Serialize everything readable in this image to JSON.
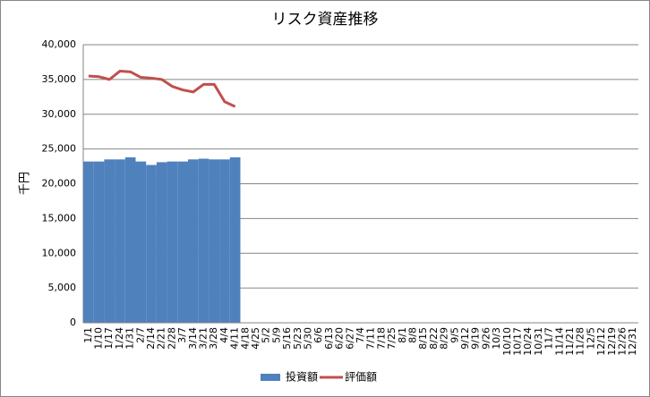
{
  "chart_data": {
    "type": "bar-line",
    "title": "リスク資産推移",
    "y_label": "千円",
    "categories": [
      "1/1",
      "1/10",
      "1/17",
      "1/24",
      "1/31",
      "2/7",
      "2/14",
      "2/21",
      "2/28",
      "3/7",
      "3/14",
      "3/21",
      "3/28",
      "4/4",
      "4/11",
      "4/18",
      "4/25",
      "5/2",
      "5/9",
      "5/16",
      "5/23",
      "5/30",
      "6/6",
      "6/13",
      "6/20",
      "6/27",
      "7/4",
      "7/11",
      "7/18",
      "7/25",
      "8/1",
      "8/8",
      "8/15",
      "8/22",
      "8/29",
      "9/5",
      "9/12",
      "9/19",
      "9/26",
      "10/3",
      "10/10",
      "10/17",
      "10/24",
      "10/31",
      "11/7",
      "11/14",
      "11/21",
      "11/28",
      "12/5",
      "12/12",
      "12/19",
      "12/26",
      "12/31"
    ],
    "series": [
      {
        "name": "投資額",
        "type": "bar",
        "color": "#4f81bd",
        "values": [
          23200,
          23200,
          23500,
          23500,
          23800,
          23200,
          22700,
          23100,
          23200,
          23200,
          23500,
          23600,
          23500,
          23500,
          23800,
          null,
          null,
          null,
          null,
          null,
          null,
          null,
          null,
          null,
          null,
          null,
          null,
          null,
          null,
          null,
          null,
          null,
          null,
          null,
          null,
          null,
          null,
          null,
          null,
          null,
          null,
          null,
          null,
          null,
          null,
          null,
          null,
          null,
          null,
          null,
          null,
          null,
          null
        ]
      },
      {
        "name": "評価額",
        "type": "line",
        "color": "#c0504d",
        "values": [
          35500,
          35400,
          35000,
          36200,
          36100,
          35300,
          35200,
          35000,
          34000,
          33500,
          33200,
          34300,
          34300,
          31800,
          31100,
          null,
          null,
          null,
          null,
          null,
          null,
          null,
          null,
          null,
          null,
          null,
          null,
          null,
          null,
          null,
          null,
          null,
          null,
          null,
          null,
          null,
          null,
          null,
          null,
          null,
          null,
          null,
          null,
          null,
          null,
          null,
          null,
          null,
          null,
          null,
          null,
          null,
          null
        ]
      }
    ],
    "ylim": [
      0,
      40000
    ],
    "yticks": [
      0,
      {
        "value": 5000,
        "label": "5,000"
      },
      {
        "value": 10000,
        "label": "10,000"
      },
      {
        "value": 15000,
        "label": "15,000"
      },
      {
        "value": 20000,
        "label": "20,000"
      },
      {
        "value": 25000,
        "label": "25,000"
      },
      {
        "value": 30000,
        "label": "30,000"
      },
      {
        "value": 35000,
        "label": "35,000"
      },
      {
        "value": 40000,
        "label": "40,000"
      }
    ],
    "grid": true,
    "legend": "bottom"
  }
}
